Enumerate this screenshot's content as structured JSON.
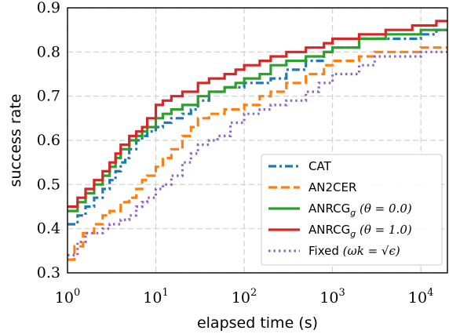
{
  "chart_data": {
    "type": "line",
    "x_scale": "log",
    "xlim": [
      1,
      20000
    ],
    "ylim": [
      0.3,
      0.9
    ],
    "xlabel": "elapsed time (s)",
    "ylabel": "success rate",
    "x_ticks": [
      {
        "value": 1,
        "base": "10",
        "exp": "0"
      },
      {
        "value": 10,
        "base": "10",
        "exp": "1"
      },
      {
        "value": 100,
        "base": "10",
        "exp": "2"
      },
      {
        "value": 1000,
        "base": "10",
        "exp": "3"
      },
      {
        "value": 10000,
        "base": "10",
        "exp": "4"
      }
    ],
    "y_ticks": [
      "0.3",
      "0.4",
      "0.5",
      "0.6",
      "0.7",
      "0.8",
      "0.9"
    ],
    "grid": true,
    "legend_position": "lower-right",
    "series": [
      {
        "name": "CAT",
        "color": "#1f77b4",
        "dash": "dashdot",
        "points": [
          [
            1,
            0.41
          ],
          [
            1.3,
            0.43
          ],
          [
            1.6,
            0.45
          ],
          [
            2,
            0.47
          ],
          [
            2.5,
            0.49
          ],
          [
            3,
            0.51
          ],
          [
            3.5,
            0.53
          ],
          [
            4,
            0.55
          ],
          [
            4.5,
            0.56
          ],
          [
            5,
            0.58
          ],
          [
            6,
            0.6
          ],
          [
            7,
            0.61
          ],
          [
            8,
            0.62
          ],
          [
            10,
            0.63
          ],
          [
            12,
            0.64
          ],
          [
            15,
            0.65
          ],
          [
            20,
            0.66
          ],
          [
            25,
            0.67
          ],
          [
            30,
            0.69
          ],
          [
            40,
            0.71
          ],
          [
            60,
            0.72
          ],
          [
            80,
            0.72
          ],
          [
            100,
            0.73
          ],
          [
            150,
            0.73
          ],
          [
            200,
            0.74
          ],
          [
            300,
            0.76
          ],
          [
            500,
            0.78
          ],
          [
            800,
            0.8
          ],
          [
            1000,
            0.81
          ],
          [
            2000,
            0.83
          ],
          [
            4000,
            0.83
          ],
          [
            10000,
            0.84
          ],
          [
            15000,
            0.85
          ],
          [
            20000,
            0.85
          ]
        ]
      },
      {
        "name": "AN2CER",
        "color": "#ff7f0e",
        "dash": "dashed",
        "points": [
          [
            1,
            0.33
          ],
          [
            1.2,
            0.36
          ],
          [
            1.5,
            0.39
          ],
          [
            2,
            0.41
          ],
          [
            2.5,
            0.43
          ],
          [
            3,
            0.44
          ],
          [
            4,
            0.46
          ],
          [
            5,
            0.47
          ],
          [
            6,
            0.49
          ],
          [
            7,
            0.51
          ],
          [
            8,
            0.52
          ],
          [
            10,
            0.54
          ],
          [
            12,
            0.56
          ],
          [
            15,
            0.58
          ],
          [
            20,
            0.61
          ],
          [
            25,
            0.63
          ],
          [
            30,
            0.65
          ],
          [
            40,
            0.66
          ],
          [
            60,
            0.67
          ],
          [
            100,
            0.68
          ],
          [
            150,
            0.7
          ],
          [
            200,
            0.71
          ],
          [
            300,
            0.73
          ],
          [
            500,
            0.75
          ],
          [
            800,
            0.77
          ],
          [
            1000,
            0.78
          ],
          [
            2000,
            0.79
          ],
          [
            3000,
            0.8
          ],
          [
            5000,
            0.8
          ],
          [
            10000,
            0.81
          ],
          [
            20000,
            0.81
          ]
        ]
      },
      {
        "name": "ANRCG",
        "name_sub": "g",
        "name_math": "(θ = 0.0)",
        "color": "#2ca02c",
        "dash": "solid",
        "points": [
          [
            1,
            0.44
          ],
          [
            1.3,
            0.46
          ],
          [
            1.6,
            0.48
          ],
          [
            2,
            0.5
          ],
          [
            2.5,
            0.52
          ],
          [
            3,
            0.54
          ],
          [
            3.5,
            0.56
          ],
          [
            4,
            0.58
          ],
          [
            5,
            0.6
          ],
          [
            6,
            0.61
          ],
          [
            7,
            0.62
          ],
          [
            8,
            0.63
          ],
          [
            10,
            0.65
          ],
          [
            12,
            0.66
          ],
          [
            15,
            0.67
          ],
          [
            20,
            0.68
          ],
          [
            30,
            0.7
          ],
          [
            40,
            0.71
          ],
          [
            60,
            0.72
          ],
          [
            80,
            0.73
          ],
          [
            100,
            0.74
          ],
          [
            150,
            0.75
          ],
          [
            200,
            0.77
          ],
          [
            300,
            0.78
          ],
          [
            500,
            0.79
          ],
          [
            800,
            0.8
          ],
          [
            1000,
            0.81
          ],
          [
            2000,
            0.83
          ],
          [
            4000,
            0.84
          ],
          [
            10000,
            0.85
          ],
          [
            20000,
            0.85
          ]
        ]
      },
      {
        "name": "ANRCG",
        "name_sub": "g",
        "name_math": "(θ = 1.0)",
        "color": "#d62728",
        "dash": "solid",
        "points": [
          [
            1,
            0.45
          ],
          [
            1.3,
            0.47
          ],
          [
            1.6,
            0.49
          ],
          [
            2,
            0.51
          ],
          [
            2.5,
            0.53
          ],
          [
            3,
            0.55
          ],
          [
            3.5,
            0.57
          ],
          [
            4,
            0.59
          ],
          [
            5,
            0.61
          ],
          [
            6,
            0.62
          ],
          [
            7,
            0.63
          ],
          [
            8,
            0.65
          ],
          [
            10,
            0.68
          ],
          [
            12,
            0.69
          ],
          [
            15,
            0.7
          ],
          [
            20,
            0.71
          ],
          [
            30,
            0.73
          ],
          [
            40,
            0.74
          ],
          [
            60,
            0.75
          ],
          [
            80,
            0.76
          ],
          [
            100,
            0.77
          ],
          [
            150,
            0.78
          ],
          [
            200,
            0.79
          ],
          [
            300,
            0.8
          ],
          [
            500,
            0.81
          ],
          [
            800,
            0.82
          ],
          [
            1000,
            0.83
          ],
          [
            2000,
            0.84
          ],
          [
            4000,
            0.85
          ],
          [
            8000,
            0.86
          ],
          [
            15000,
            0.87
          ],
          [
            20000,
            0.87
          ]
        ]
      },
      {
        "name": "Fixed",
        "name_math": "(ωk = √ϵ)",
        "color": "#9467bd",
        "dash": "dotted",
        "points": [
          [
            1,
            0.34
          ],
          [
            1.3,
            0.37
          ],
          [
            1.6,
            0.39
          ],
          [
            2,
            0.39
          ],
          [
            2.5,
            0.4
          ],
          [
            3,
            0.41
          ],
          [
            4,
            0.42
          ],
          [
            5,
            0.43
          ],
          [
            6,
            0.45
          ],
          [
            7,
            0.46
          ],
          [
            8,
            0.47
          ],
          [
            10,
            0.49
          ],
          [
            12,
            0.5
          ],
          [
            15,
            0.52
          ],
          [
            20,
            0.55
          ],
          [
            25,
            0.57
          ],
          [
            30,
            0.59
          ],
          [
            40,
            0.6
          ],
          [
            50,
            0.61
          ],
          [
            70,
            0.64
          ],
          [
            100,
            0.66
          ],
          [
            150,
            0.67
          ],
          [
            200,
            0.68
          ],
          [
            300,
            0.69
          ],
          [
            500,
            0.71
          ],
          [
            700,
            0.73
          ],
          [
            1000,
            0.75
          ],
          [
            2000,
            0.77
          ],
          [
            3000,
            0.79
          ],
          [
            5000,
            0.79
          ],
          [
            10000,
            0.8
          ],
          [
            20000,
            0.8
          ]
        ]
      }
    ]
  }
}
